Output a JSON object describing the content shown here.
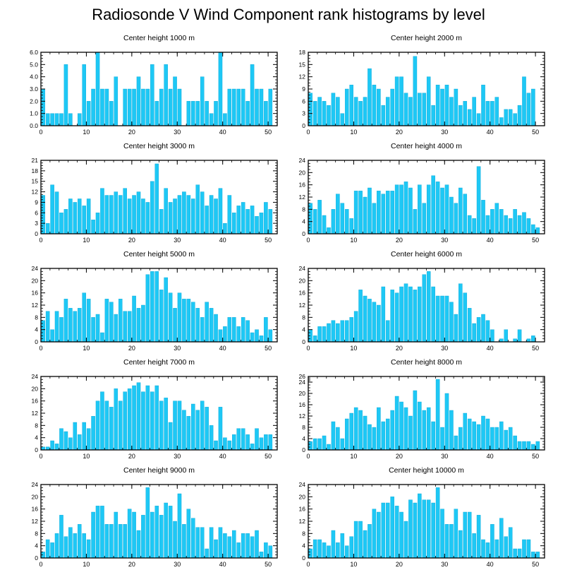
{
  "title": "Radiosonde V Wind Component rank histograms by level",
  "colors": {
    "bar": "#1ec8f5",
    "bar_stroke": "#0aa6d6",
    "axis": "#000000"
  },
  "chart_data": [
    {
      "type": "bar",
      "title": "Center height 1000 m",
      "xlim": [
        0,
        52
      ],
      "xticks": [
        0,
        10,
        20,
        30,
        40,
        50
      ],
      "ylim": [
        0,
        6
      ],
      "yticks": [
        0,
        1,
        2,
        3,
        4,
        5,
        6
      ],
      "ytick_labels": [
        "0.0",
        "1.0",
        "2.0",
        "3.0",
        "4.0",
        "5.0",
        "6.0"
      ],
      "values": [
        3,
        1,
        1,
        1,
        1,
        5,
        1,
        0,
        1,
        5,
        2,
        3,
        6,
        3,
        3,
        2,
        4,
        0,
        3,
        3,
        3,
        4,
        3,
        3,
        5,
        2,
        3,
        5,
        3,
        4,
        3,
        0,
        2,
        2,
        2,
        4,
        2,
        1,
        2,
        6,
        1,
        3,
        3,
        3,
        3,
        2,
        5,
        3,
        3,
        2,
        3
      ]
    },
    {
      "type": "bar",
      "title": "Center height 2000 m",
      "xlim": [
        0,
        52
      ],
      "xticks": [
        0,
        10,
        20,
        30,
        40,
        50
      ],
      "ylim": [
        0,
        18
      ],
      "yticks": [
        0,
        3,
        6,
        9,
        12,
        15,
        18
      ],
      "ytick_labels": [
        "0",
        "3",
        "6",
        "9",
        "12",
        "15",
        "18"
      ],
      "values": [
        8,
        6,
        7,
        6,
        5,
        8,
        7,
        3,
        9,
        10,
        7,
        6,
        7,
        14,
        10,
        9,
        5,
        7,
        9,
        12,
        12,
        8,
        7,
        17,
        8,
        8,
        12,
        5,
        10,
        9,
        10,
        7,
        9,
        5,
        6,
        4,
        7,
        3,
        10,
        6,
        6,
        7,
        2,
        4,
        4,
        3,
        5,
        12,
        8,
        9,
        0
      ]
    },
    {
      "type": "bar",
      "title": "Center height 3000 m",
      "xlim": [
        0,
        52
      ],
      "xticks": [
        0,
        10,
        20,
        30,
        40,
        50
      ],
      "ylim": [
        0,
        21
      ],
      "yticks": [
        0,
        3,
        6,
        9,
        12,
        15,
        18,
        21
      ],
      "ytick_labels": [
        "0",
        "3",
        "6",
        "9",
        "12",
        "15",
        "18",
        "21"
      ],
      "values": [
        11,
        3,
        14,
        12,
        6,
        7,
        10,
        9,
        10,
        8,
        10,
        4,
        6,
        13,
        11,
        11,
        12,
        11,
        13,
        10,
        11,
        12,
        10,
        9,
        15,
        20,
        7,
        13,
        9,
        10,
        11,
        12,
        11,
        10,
        14,
        12,
        8,
        11,
        10,
        13,
        3,
        11,
        6,
        8,
        9,
        7,
        8,
        5,
        6,
        9,
        7
      ]
    },
    {
      "type": "bar",
      "title": "Center height 4000 m",
      "xlim": [
        0,
        52
      ],
      "xticks": [
        0,
        10,
        20,
        30,
        40,
        50
      ],
      "ylim": [
        0,
        24
      ],
      "yticks": [
        0,
        4,
        8,
        12,
        16,
        20,
        24
      ],
      "ytick_labels": [
        "0",
        "4",
        "8",
        "12",
        "16",
        "20",
        "24"
      ],
      "values": [
        10,
        8,
        11,
        6,
        2,
        8,
        13,
        10,
        8,
        5,
        14,
        14,
        12,
        15,
        10,
        14,
        13,
        14,
        14,
        16,
        16,
        17,
        15,
        8,
        16,
        10,
        16,
        19,
        17,
        15,
        16,
        12,
        10,
        15,
        13,
        6,
        5,
        22,
        11,
        6,
        8,
        10,
        8,
        6,
        5,
        8,
        6,
        7,
        5,
        3,
        2
      ]
    },
    {
      "type": "bar",
      "title": "Center height 5000 m",
      "xlim": [
        0,
        52
      ],
      "xticks": [
        0,
        10,
        20,
        30,
        40,
        50
      ],
      "ylim": [
        0,
        24
      ],
      "yticks": [
        0,
        4,
        8,
        12,
        16,
        20,
        24
      ],
      "ytick_labels": [
        "0",
        "4",
        "8",
        "12",
        "16",
        "20",
        "24"
      ],
      "values": [
        7,
        10,
        4,
        10,
        8,
        14,
        11,
        10,
        11,
        16,
        14,
        8,
        9,
        3,
        14,
        13,
        9,
        14,
        10,
        10,
        15,
        11,
        12,
        22,
        23,
        23,
        17,
        21,
        16,
        11,
        16,
        14,
        14,
        13,
        11,
        8,
        13,
        11,
        9,
        4,
        5,
        8,
        8,
        5,
        8,
        7,
        3,
        4,
        2,
        8,
        4
      ]
    },
    {
      "type": "bar",
      "title": "Center height 6000 m",
      "xlim": [
        0,
        52
      ],
      "xticks": [
        0,
        10,
        20,
        30,
        40,
        50
      ],
      "ylim": [
        0,
        24
      ],
      "yticks": [
        0,
        4,
        8,
        12,
        16,
        20,
        24
      ],
      "ytick_labels": [
        "0",
        "4",
        "8",
        "12",
        "16",
        "20",
        "24"
      ],
      "values": [
        4,
        2,
        5,
        5,
        6,
        7,
        6,
        7,
        7,
        8,
        10,
        17,
        15,
        14,
        13,
        12,
        18,
        7,
        17,
        16,
        18,
        19,
        18,
        17,
        18,
        22,
        23,
        18,
        15,
        15,
        15,
        13,
        9,
        19,
        16,
        11,
        6,
        8,
        9,
        7,
        4,
        0,
        1,
        4,
        0,
        1,
        4,
        0,
        1,
        2,
        0
      ]
    },
    {
      "type": "bar",
      "title": "Center height 7000 m",
      "xlim": [
        0,
        52
      ],
      "xticks": [
        0,
        10,
        20,
        30,
        40,
        50
      ],
      "ylim": [
        0,
        24
      ],
      "yticks": [
        0,
        4,
        8,
        12,
        16,
        20,
        24
      ],
      "ytick_labels": [
        "0",
        "4",
        "8",
        "12",
        "16",
        "20",
        "24"
      ],
      "values": [
        1,
        1,
        3,
        2,
        7,
        6,
        4,
        9,
        5,
        9,
        7,
        11,
        16,
        19,
        16,
        14,
        20,
        16,
        19,
        20,
        21,
        22,
        19,
        21,
        19,
        21,
        16,
        17,
        9,
        16,
        16,
        13,
        11,
        15,
        13,
        16,
        14,
        8,
        3,
        14,
        4,
        3,
        5,
        7,
        7,
        5,
        2,
        7,
        4,
        5,
        5
      ]
    },
    {
      "type": "bar",
      "title": "Center height 8000 m",
      "xlim": [
        0,
        52
      ],
      "xticks": [
        0,
        10,
        20,
        30,
        40,
        50
      ],
      "ylim": [
        0,
        26
      ],
      "yticks": [
        0,
        4,
        8,
        12,
        16,
        20,
        24,
        26
      ],
      "ytick_labels": [
        "0",
        "4",
        "8",
        "12",
        "16",
        "20",
        "24",
        "26"
      ],
      "values": [
        3,
        4,
        4,
        5,
        2,
        10,
        8,
        4,
        11,
        13,
        15,
        14,
        12,
        9,
        8,
        15,
        10,
        11,
        14,
        19,
        17,
        15,
        12,
        21,
        17,
        14,
        15,
        10,
        25,
        8,
        20,
        14,
        5,
        8,
        13,
        11,
        10,
        9,
        12,
        11,
        8,
        8,
        10,
        7,
        8,
        5,
        3,
        3,
        3,
        2,
        3
      ]
    },
    {
      "type": "bar",
      "title": "Center height 9000 m",
      "xlim": [
        0,
        52
      ],
      "xticks": [
        0,
        10,
        20,
        30,
        40,
        50
      ],
      "ylim": [
        0,
        24
      ],
      "yticks": [
        0,
        4,
        8,
        12,
        16,
        20,
        24
      ],
      "ytick_labels": [
        "0",
        "4",
        "8",
        "12",
        "16",
        "20",
        "24"
      ],
      "values": [
        2,
        6,
        5,
        8,
        14,
        7,
        10,
        8,
        11,
        8,
        6,
        15,
        17,
        17,
        11,
        11,
        15,
        11,
        11,
        16,
        15,
        9,
        14,
        23,
        15,
        17,
        14,
        18,
        17,
        12,
        21,
        11,
        16,
        13,
        10,
        10,
        3,
        10,
        6,
        10,
        8,
        7,
        9,
        5,
        8,
        8,
        7,
        9,
        2,
        5,
        4
      ]
    },
    {
      "type": "bar",
      "title": "Center height 10000 m",
      "xlim": [
        0,
        52
      ],
      "xticks": [
        0,
        10,
        20,
        30,
        40,
        50
      ],
      "ylim": [
        0,
        24
      ],
      "yticks": [
        0,
        4,
        8,
        12,
        16,
        20,
        24
      ],
      "ytick_labels": [
        "0",
        "4",
        "8",
        "12",
        "16",
        "20",
        "24"
      ],
      "values": [
        3,
        6,
        6,
        5,
        4,
        9,
        5,
        8,
        4,
        7,
        12,
        12,
        9,
        11,
        16,
        15,
        18,
        18,
        20,
        17,
        15,
        12,
        19,
        18,
        21,
        19,
        19,
        18,
        23,
        16,
        11,
        11,
        16,
        9,
        15,
        15,
        8,
        14,
        6,
        5,
        11,
        6,
        13,
        7,
        10,
        3,
        3,
        6,
        6,
        2,
        2
      ]
    }
  ]
}
